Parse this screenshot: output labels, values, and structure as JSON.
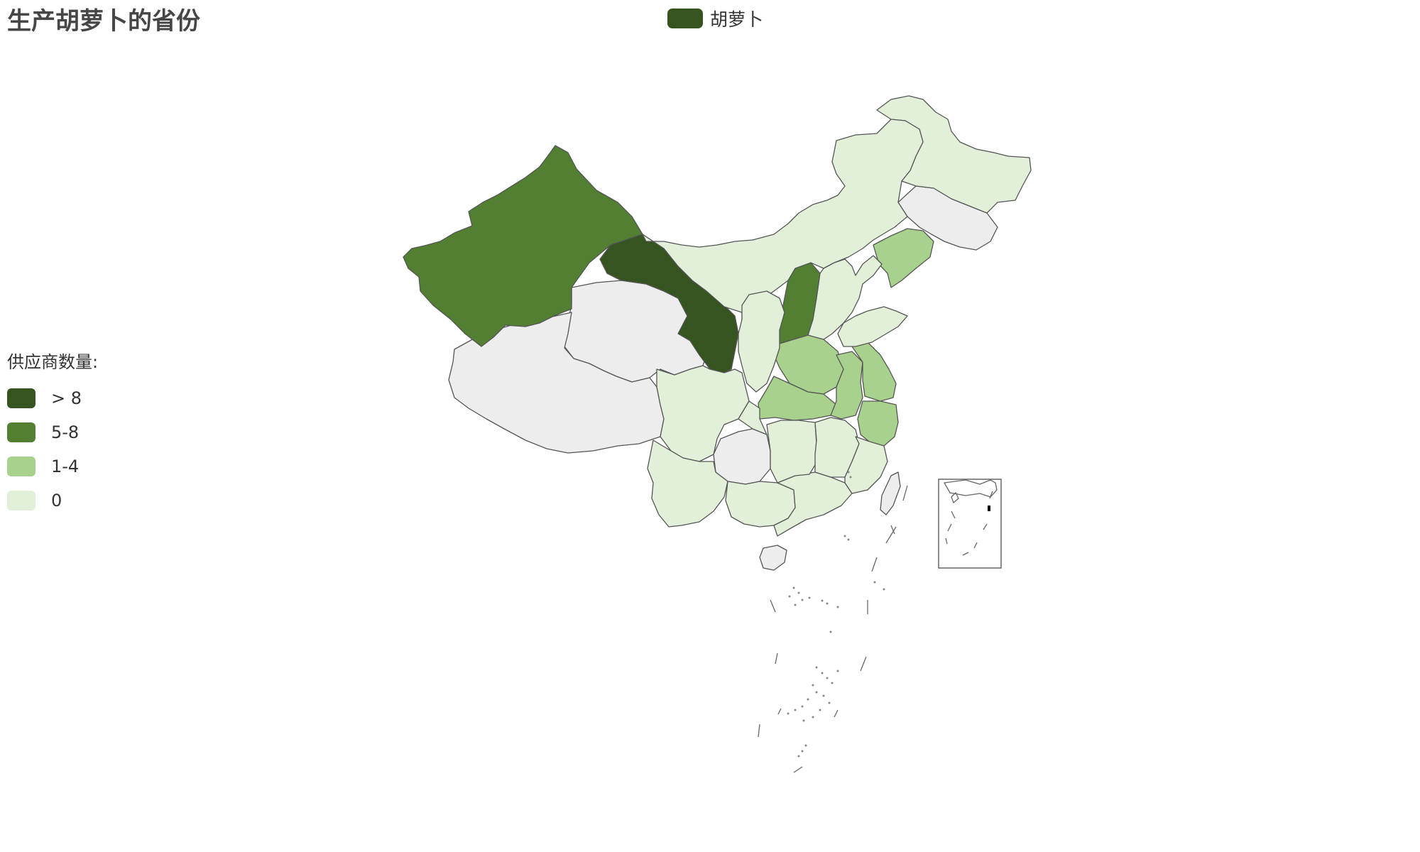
{
  "title": "生产胡萝卜的省份",
  "legend": {
    "series": "胡萝卜",
    "color": "#35541f"
  },
  "visual_map": {
    "title": "供应商数量:",
    "items": [
      {
        "label": "> 8",
        "color": "#35541f"
      },
      {
        "label": "5-8",
        "color": "#527f32"
      },
      {
        "label": "1-4",
        "color": "#a9d18e"
      },
      {
        "label": "0",
        "color": "#e2f0d9"
      }
    ]
  },
  "regions": {
    "xinjiang": {
      "name": "新疆",
      "tier": "5-8"
    },
    "gansu": {
      "name": "甘肃",
      "tier": "> 8"
    },
    "ningxia": {
      "name": "宁夏",
      "tier": "> 8"
    },
    "shanxi": {
      "name": "山西",
      "tier": "5-8"
    },
    "tianjin": {
      "name": "天津",
      "tier": "5-8"
    },
    "beijing": {
      "name": "北京",
      "tier": "1-4"
    },
    "liaoning": {
      "name": "辽宁",
      "tier": "1-4"
    },
    "henan": {
      "name": "河南",
      "tier": "1-4"
    },
    "hubei": {
      "name": "湖北",
      "tier": "1-4"
    },
    "anhui": {
      "name": "安徽",
      "tier": "1-4"
    },
    "jiangsu": {
      "name": "江苏",
      "tier": "1-4"
    },
    "zhejiang": {
      "name": "浙江",
      "tier": "1-4"
    },
    "heilongjiang": {
      "name": "黑龙江",
      "tier": "0"
    },
    "neimenggu": {
      "name": "内蒙古",
      "tier": "0"
    },
    "hebei": {
      "name": "河北",
      "tier": "0"
    },
    "shandong": {
      "name": "山东",
      "tier": "0"
    },
    "sichuan": {
      "name": "四川",
      "tier": "0"
    },
    "yunnan": {
      "name": "云南",
      "tier": "0"
    },
    "guangxi": {
      "name": "广西",
      "tier": "0"
    },
    "guangdong": {
      "name": "广东",
      "tier": "0"
    },
    "hunan": {
      "name": "湖南",
      "tier": "0"
    },
    "jiangxi": {
      "name": "江西",
      "tier": "0"
    },
    "fujian": {
      "name": "福建",
      "tier": "0"
    },
    "chongqing": {
      "name": "重庆",
      "tier": "0"
    },
    "shaanxi": {
      "name": "陕西",
      "tier": "0"
    },
    "qinghai": {
      "name": "青海",
      "tier": null
    },
    "xizang": {
      "name": "西藏",
      "tier": null
    },
    "jilin": {
      "name": "吉林",
      "tier": null
    },
    "guizhou": {
      "name": "贵州",
      "tier": null
    },
    "taiwan": {
      "name": "台湾",
      "tier": null
    },
    "hainan": {
      "name": "海南",
      "tier": null
    }
  }
}
